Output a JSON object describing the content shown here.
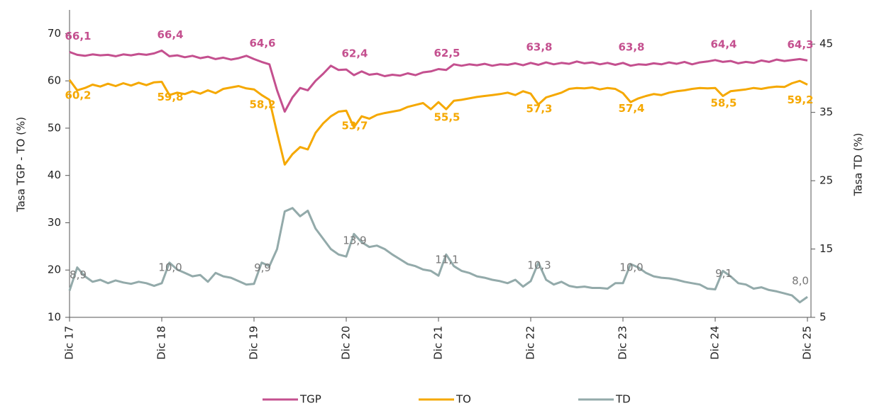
{
  "chart_data": {
    "type": "line",
    "categories": [
      "Dic 17",
      null,
      null,
      null,
      null,
      null,
      null,
      null,
      null,
      null,
      null,
      null,
      "Dic 18",
      null,
      null,
      null,
      null,
      null,
      null,
      null,
      null,
      null,
      null,
      null,
      "Dic 19",
      null,
      null,
      null,
      null,
      null,
      null,
      null,
      null,
      null,
      null,
      null,
      "Dic 20",
      null,
      null,
      null,
      null,
      null,
      null,
      null,
      null,
      null,
      null,
      null,
      "Dic 21",
      null,
      null,
      null,
      null,
      null,
      null,
      null,
      null,
      null,
      null,
      null,
      "Dic 22",
      null,
      null,
      null,
      null,
      null,
      null,
      null,
      null,
      null,
      null,
      null,
      "Dic 23",
      null,
      null,
      null,
      null,
      null,
      null,
      null,
      null,
      null,
      null,
      null,
      "Dic 24",
      null,
      null,
      null,
      null,
      null,
      null,
      null,
      null,
      null,
      null,
      null,
      "Dic 25"
    ],
    "ylabel": "Tasa TGP - TO (%)",
    "y2label": "Tasa TD (%)",
    "ylim": [
      10,
      75
    ],
    "yticks": [
      10,
      20,
      30,
      40,
      50,
      60,
      70
    ],
    "y2lim": [
      5,
      50
    ],
    "y2ticks": [
      5,
      15,
      25,
      35,
      45
    ],
    "legend": "bottom",
    "series": [
      {
        "name": "TGP",
        "color": "#c4508f",
        "values": [
          66.1,
          65.5,
          65.3,
          65.6,
          65.4,
          65.5,
          65.2,
          65.6,
          65.4,
          65.7,
          65.5,
          65.8,
          66.4,
          65.2,
          65.4,
          65.0,
          65.3,
          64.8,
          65.1,
          64.6,
          64.9,
          64.5,
          64.8,
          65.3,
          64.6,
          64.0,
          63.5,
          58.0,
          53.5,
          56.5,
          58.5,
          58.0,
          60.0,
          61.5,
          63.2,
          62.3,
          62.4,
          61.2,
          62.0,
          61.3,
          61.5,
          61.0,
          61.3,
          61.1,
          61.6,
          61.2,
          61.8,
          62.0,
          62.5,
          62.3,
          63.5,
          63.2,
          63.5,
          63.3,
          63.6,
          63.2,
          63.5,
          63.4,
          63.7,
          63.3,
          63.8,
          63.4,
          63.9,
          63.5,
          63.8,
          63.6,
          64.1,
          63.7,
          63.9,
          63.5,
          63.8,
          63.4,
          63.8,
          63.2,
          63.5,
          63.4,
          63.7,
          63.5,
          63.9,
          63.6,
          64.0,
          63.5,
          63.9,
          64.1,
          64.4,
          64.0,
          64.2,
          63.7,
          64.0,
          63.8,
          64.3,
          64.0,
          64.5,
          64.2,
          64.4,
          64.6,
          64.3
        ],
        "value_labels": [
          "66,1",
          null,
          null,
          null,
          null,
          null,
          null,
          null,
          null,
          null,
          null,
          null,
          "66,4",
          null,
          null,
          null,
          null,
          null,
          null,
          null,
          null,
          null,
          null,
          null,
          "64,6",
          null,
          null,
          null,
          null,
          null,
          null,
          null,
          null,
          null,
          null,
          null,
          "62,4",
          null,
          null,
          null,
          null,
          null,
          null,
          null,
          null,
          null,
          null,
          null,
          "62,5",
          null,
          null,
          null,
          null,
          null,
          null,
          null,
          null,
          null,
          null,
          null,
          "63,8",
          null,
          null,
          null,
          null,
          null,
          null,
          null,
          null,
          null,
          null,
          null,
          "63,8",
          null,
          null,
          null,
          null,
          null,
          null,
          null,
          null,
          null,
          null,
          null,
          "64,4",
          null,
          null,
          null,
          null,
          null,
          null,
          null,
          null,
          null,
          null,
          null,
          "64,3"
        ]
      },
      {
        "name": "TO",
        "color": "#f5a800",
        "values": [
          60.2,
          58.0,
          58.5,
          59.2,
          58.8,
          59.4,
          58.9,
          59.5,
          59.0,
          59.6,
          59.1,
          59.7,
          59.8,
          57.0,
          57.5,
          57.2,
          57.8,
          57.3,
          58.0,
          57.4,
          58.3,
          58.6,
          58.9,
          58.4,
          58.2,
          57.0,
          56.0,
          49.0,
          42.3,
          44.5,
          46.0,
          45.5,
          49.0,
          51.0,
          52.5,
          53.5,
          53.7,
          50.2,
          52.5,
          52.0,
          52.8,
          53.2,
          53.5,
          53.8,
          54.5,
          54.9,
          55.3,
          54.0,
          55.5,
          54.0,
          55.8,
          56.0,
          56.3,
          56.6,
          56.8,
          57.0,
          57.2,
          57.5,
          57.0,
          57.8,
          57.3,
          55.0,
          56.5,
          57.0,
          57.5,
          58.3,
          58.5,
          58.4,
          58.6,
          58.2,
          58.5,
          58.3,
          57.4,
          55.5,
          56.3,
          56.8,
          57.2,
          57.0,
          57.5,
          57.8,
          58.0,
          58.3,
          58.5,
          58.4,
          58.5,
          56.8,
          57.8,
          58.0,
          58.2,
          58.5,
          58.3,
          58.6,
          58.8,
          58.7,
          59.5,
          60.0,
          59.2
        ],
        "value_labels": [
          "60,2",
          null,
          null,
          null,
          null,
          null,
          null,
          null,
          null,
          null,
          null,
          null,
          "59,8",
          null,
          null,
          null,
          null,
          null,
          null,
          null,
          null,
          null,
          null,
          null,
          "58,2",
          null,
          null,
          null,
          null,
          null,
          null,
          null,
          null,
          null,
          null,
          null,
          "53,7",
          null,
          null,
          null,
          null,
          null,
          null,
          null,
          null,
          null,
          null,
          null,
          "55,5",
          null,
          null,
          null,
          null,
          null,
          null,
          null,
          null,
          null,
          null,
          null,
          "57,3",
          null,
          null,
          null,
          null,
          null,
          null,
          null,
          null,
          null,
          null,
          null,
          "57,4",
          null,
          null,
          null,
          null,
          null,
          null,
          null,
          null,
          null,
          null,
          null,
          "58,5",
          null,
          null,
          null,
          null,
          null,
          null,
          null,
          null,
          null,
          null,
          null,
          "59,2"
        ]
      },
      {
        "name": "TD",
        "color": "#93aaaa",
        "axis": "y2",
        "values": [
          8.9,
          12.3,
          11.0,
          10.2,
          10.5,
          10.0,
          10.4,
          10.1,
          9.9,
          10.2,
          10.0,
          9.6,
          10.0,
          13.0,
          12.0,
          11.5,
          11.0,
          11.2,
          10.2,
          11.5,
          11.0,
          10.8,
          10.3,
          9.8,
          9.9,
          13.0,
          12.5,
          15.0,
          20.5,
          21.0,
          19.8,
          20.6,
          18.0,
          16.5,
          15.0,
          14.2,
          13.9,
          17.2,
          16.0,
          15.3,
          15.5,
          15.0,
          14.2,
          13.5,
          12.8,
          12.5,
          12.0,
          11.8,
          11.1,
          14.2,
          12.5,
          11.8,
          11.5,
          11.0,
          10.8,
          10.5,
          10.3,
          10.0,
          10.5,
          9.5,
          10.3,
          13.0,
          10.5,
          9.8,
          10.2,
          9.6,
          9.4,
          9.5,
          9.3,
          9.3,
          9.2,
          10.0,
          10.0,
          12.8,
          12.3,
          11.5,
          11.0,
          10.8,
          10.7,
          10.5,
          10.2,
          10.0,
          9.8,
          9.2,
          9.1,
          11.8,
          11.0,
          10.0,
          9.8,
          9.2,
          9.4,
          9.0,
          8.8,
          8.5,
          8.2,
          7.2,
          8.0
        ],
        "value_labels": [
          "8,9",
          null,
          null,
          null,
          null,
          null,
          null,
          null,
          null,
          null,
          null,
          null,
          "10,0",
          null,
          null,
          null,
          null,
          null,
          null,
          null,
          null,
          null,
          null,
          null,
          "9,9",
          null,
          null,
          null,
          null,
          null,
          null,
          null,
          null,
          null,
          null,
          null,
          "13,9",
          null,
          null,
          null,
          null,
          null,
          null,
          null,
          null,
          null,
          null,
          null,
          "11,1",
          null,
          null,
          null,
          null,
          null,
          null,
          null,
          null,
          null,
          null,
          null,
          "10,3",
          null,
          null,
          null,
          null,
          null,
          null,
          null,
          null,
          null,
          null,
          null,
          "10,0",
          null,
          null,
          null,
          null,
          null,
          null,
          null,
          null,
          null,
          null,
          null,
          "9,1",
          null,
          null,
          null,
          null,
          null,
          null,
          null,
          null,
          null,
          null,
          null,
          "8,0"
        ]
      }
    ]
  }
}
